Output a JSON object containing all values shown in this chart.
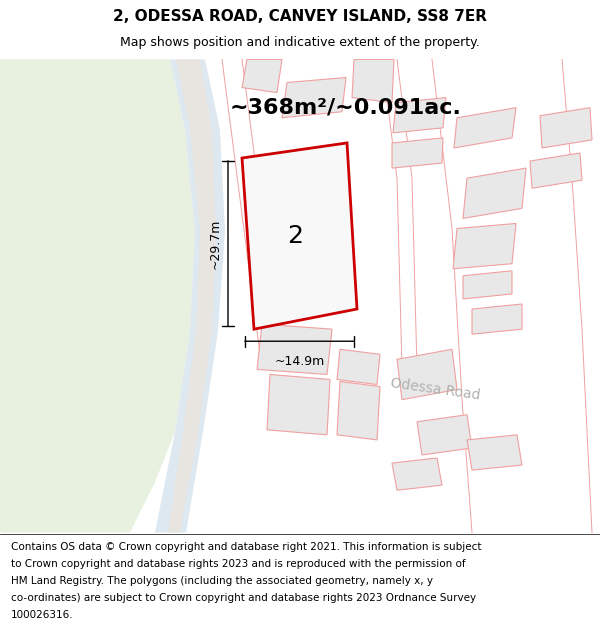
{
  "title": "2, ODESSA ROAD, CANVEY ISLAND, SS8 7ER",
  "subtitle": "Map shows position and indicative extent of the property.",
  "area_text": "~368m²/~0.091ac.",
  "dim_height": "~29.7m",
  "dim_width": "~14.9m",
  "label_number": "2",
  "road_label": "Odessa Road",
  "footer_lines": [
    "Contains OS data © Crown copyright and database right 2021. This information is subject",
    "to Crown copyright and database rights 2023 and is reproduced with the permission of",
    "HM Land Registry. The polygons (including the associated geometry, namely x, y",
    "co-ordinates) are subject to Crown copyright and database rights 2023 Ordnance Survey",
    "100026316."
  ],
  "bg_map_color": "#f5f5f0",
  "green_area_color": "#e8f0e0",
  "road_curve_color": "#dde8f0",
  "road_surface_color": "#e8e4e0",
  "building_fill": "#e8e8e8",
  "building_outline": "#f0a0a0",
  "property_outline": "#cc0000",
  "property_fill": "#f8f8f8",
  "property_inner_fill": "#e0e0e0",
  "title_fontsize": 11,
  "subtitle_fontsize": 9,
  "area_fontsize": 16,
  "label_fontsize": 18,
  "road_label_fontsize": 10,
  "footer_fontsize": 7.5
}
